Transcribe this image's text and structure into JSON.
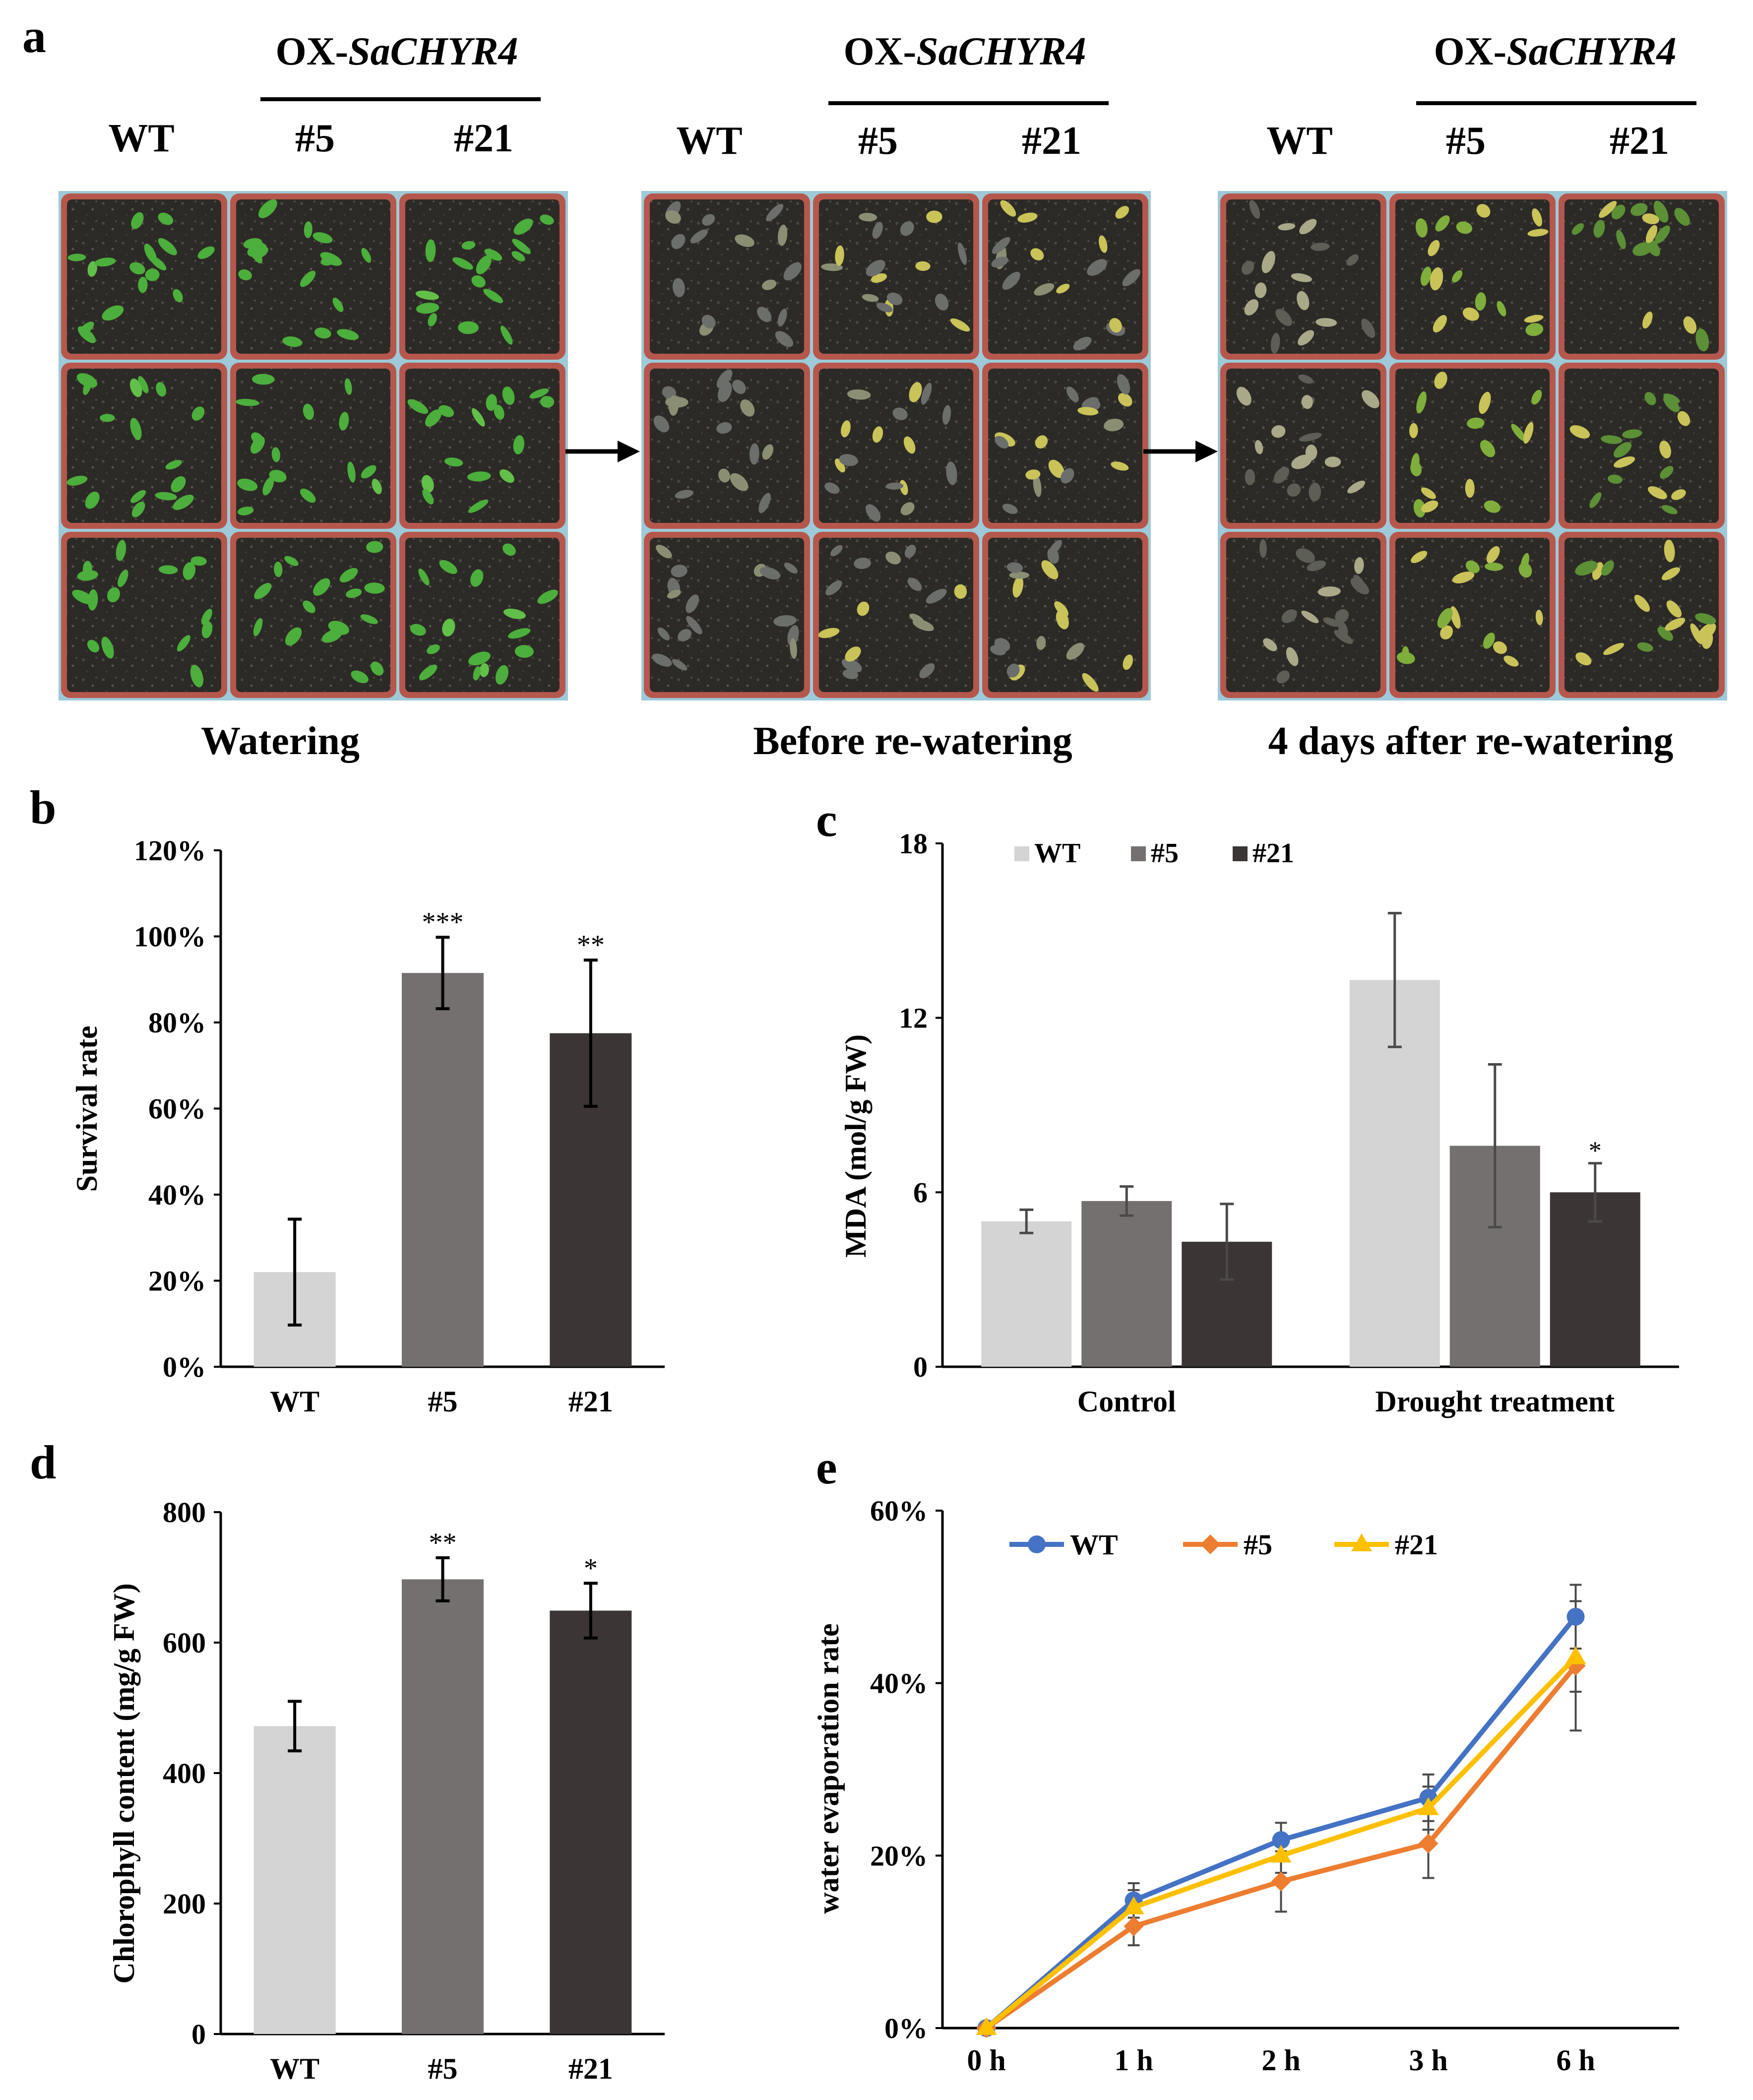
{
  "panel_a": {
    "letter": "a",
    "groups": [
      {
        "ox_label": "OX-",
        "ox_gene": "SaCHYR4",
        "wt": "WT",
        "l5": "#5",
        "l21": "#21",
        "caption": "Watering",
        "state": "watered"
      },
      {
        "ox_label": "OX-",
        "ox_gene": "SaCHYR4",
        "wt": "WT",
        "l5": "#5",
        "l21": "#21",
        "caption": "Before re-watering",
        "state": "drought"
      },
      {
        "ox_label": "OX-",
        "ox_gene": "SaCHYR4",
        "wt": "WT",
        "l5": "#5",
        "l21": "#21",
        "caption": "4 days after re-watering",
        "state": "recovery"
      }
    ],
    "colors": {
      "soil": "#2c2a26",
      "pot": "#b5574c",
      "green": "#4cae3c",
      "yellow": "#c9c35a",
      "dry": "#6b6e6b"
    }
  },
  "chart_data": [
    {
      "panel": "b",
      "type": "bar",
      "categories": [
        "WT",
        "#5",
        "#21"
      ],
      "values": [
        0.22,
        0.915,
        0.775
      ],
      "errors": [
        0.123,
        0.083,
        0.17
      ],
      "significance": [
        "",
        "***",
        "**"
      ],
      "colors": [
        "#d4d4d4",
        "#757070",
        "#3b3536"
      ],
      "ylabel": "Survival rate",
      "ylim": [
        0,
        1.2
      ],
      "yticks": [
        "0%",
        "20%",
        "40%",
        "60%",
        "80%",
        "100%",
        "120%"
      ]
    },
    {
      "panel": "c",
      "type": "bar",
      "categories": [
        "Control",
        "Drought treatment"
      ],
      "series": [
        {
          "name": "WT",
          "values": [
            5.0,
            13.3
          ],
          "errors": [
            0.4,
            2.3
          ],
          "color": "#d4d4d4",
          "sig": [
            "",
            ""
          ]
        },
        {
          "name": "#5",
          "values": [
            5.7,
            7.6
          ],
          "errors": [
            0.5,
            2.8
          ],
          "color": "#757070",
          "sig": [
            "",
            ""
          ]
        },
        {
          "name": "#21",
          "values": [
            4.3,
            6.0
          ],
          "errors": [
            1.3,
            1.0
          ],
          "color": "#3b3536",
          "sig": [
            "",
            "*"
          ]
        }
      ],
      "ylabel": "MDA (mol/g FW)",
      "ylim": [
        0,
        18
      ],
      "yticks": [
        "0",
        "6",
        "12",
        "18"
      ],
      "legend": "top-left"
    },
    {
      "panel": "d",
      "type": "bar",
      "categories": [
        "WT",
        "#5",
        "#21"
      ],
      "values": [
        472,
        697,
        649
      ],
      "errors": [
        38,
        33,
        42
      ],
      "significance": [
        "",
        "**",
        "*"
      ],
      "colors": [
        "#d4d4d4",
        "#757070",
        "#3b3536"
      ],
      "ylabel": "Chlorophyll content (mg/g FW)",
      "ylim": [
        0,
        800
      ],
      "yticks": [
        "0",
        "200",
        "400",
        "600",
        "800"
      ]
    },
    {
      "panel": "e",
      "type": "line",
      "x": [
        "0 h",
        "1 h",
        "2 h",
        "3 h",
        "6 h"
      ],
      "series": [
        {
          "name": "WT",
          "values": [
            0.0,
            0.148,
            0.218,
            0.267,
            0.477
          ],
          "errors": [
            0,
            0.02,
            0.02,
            0.027,
            0.037
          ],
          "color": "#4472c4",
          "marker": "circle"
        },
        {
          "name": "#5",
          "values": [
            0.0,
            0.118,
            0.17,
            0.214,
            0.42
          ],
          "errors": [
            0,
            0.022,
            0.035,
            0.04,
            0.075
          ],
          "color": "#ed7d31",
          "marker": "diamond"
        },
        {
          "name": "#21",
          "values": [
            0.0,
            0.14,
            0.2,
            0.255,
            0.43
          ],
          "errors": [
            0,
            0.02,
            0.02,
            0.025,
            0.04
          ],
          "color": "#ffc000",
          "marker": "triangle"
        }
      ],
      "ylabel": "water evaporation rate",
      "ylim": [
        0,
        0.6
      ],
      "yticks": [
        "0%",
        "20%",
        "40%",
        "60%"
      ],
      "legend": "top-left"
    }
  ],
  "letters": {
    "b": "b",
    "c": "c",
    "d": "d",
    "e": "e"
  }
}
